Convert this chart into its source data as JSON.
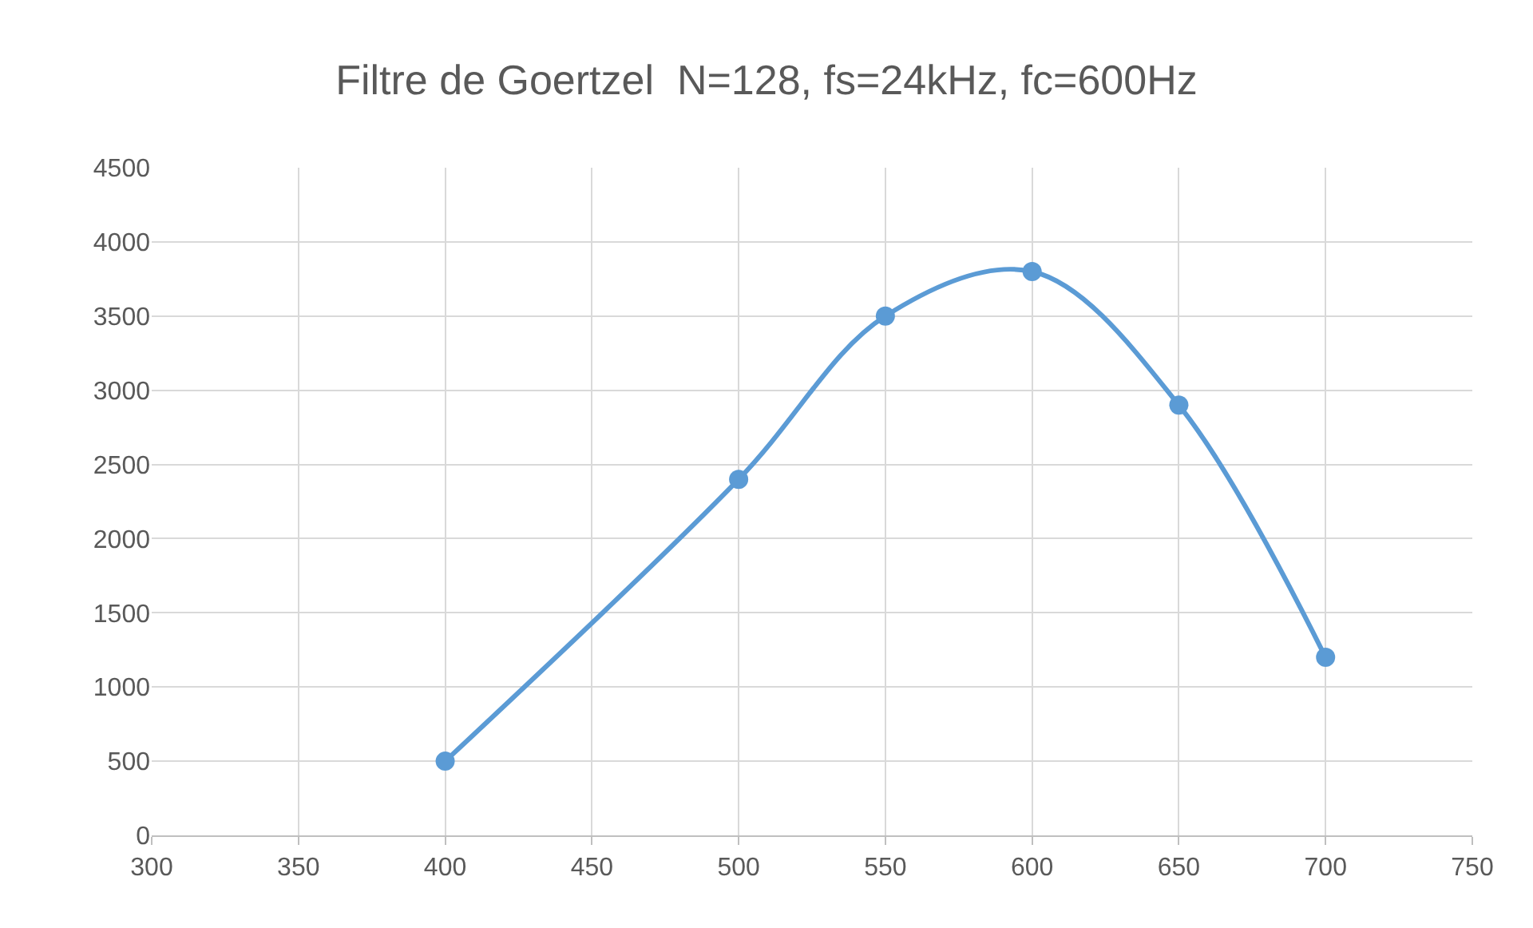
{
  "chart_data": {
    "type": "line",
    "title": "Filtre de Goertzel  N=128, fs=24kHz, fc=600Hz",
    "x": [
      400,
      500,
      550,
      600,
      650,
      700
    ],
    "series": [
      {
        "color": "#5b9bd5",
        "values": [
          500,
          2400,
          3500,
          3800,
          2900,
          1200
        ]
      }
    ],
    "xlim": [
      300,
      750
    ],
    "xticks": [
      300,
      350,
      400,
      450,
      500,
      550,
      600,
      650,
      700,
      750
    ],
    "ylim": [
      0,
      4500
    ],
    "yticks": [
      0,
      500,
      1000,
      1500,
      2000,
      2500,
      3000,
      3500,
      4000,
      4500
    ],
    "grid": true,
    "marker": "circle",
    "line_style": "solid"
  }
}
